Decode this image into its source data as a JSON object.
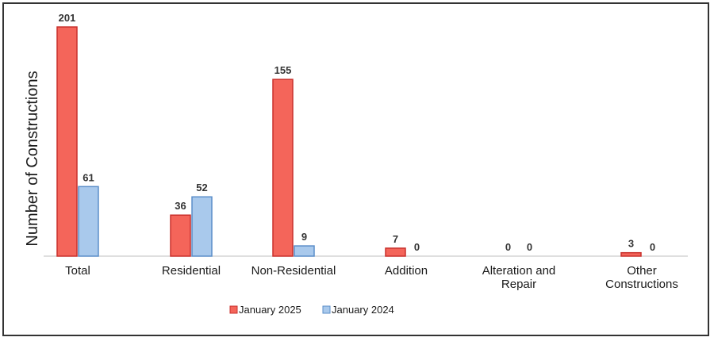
{
  "chart_data": {
    "type": "bar",
    "ylabel": "Number of Constructions",
    "xlabel": "",
    "title": "",
    "categories": [
      [
        "Total"
      ],
      [
        "Residential"
      ],
      [
        "Non-Residential"
      ],
      [
        "Addition"
      ],
      [
        "Alteration and",
        "Repair"
      ],
      [
        "Other",
        "Constructions"
      ]
    ],
    "series": [
      {
        "name": "January 2025",
        "color": "#f4655a",
        "stroke": "#c9302c",
        "values": [
          201,
          36,
          155,
          7,
          0,
          3
        ]
      },
      {
        "name": "January 2024",
        "color": "#a9c9ec",
        "stroke": "#5b8ec9",
        "values": [
          61,
          52,
          9,
          0,
          0,
          0
        ]
      }
    ],
    "ylim": [
      0,
      201
    ],
    "grid": false,
    "legend": "bottom"
  }
}
